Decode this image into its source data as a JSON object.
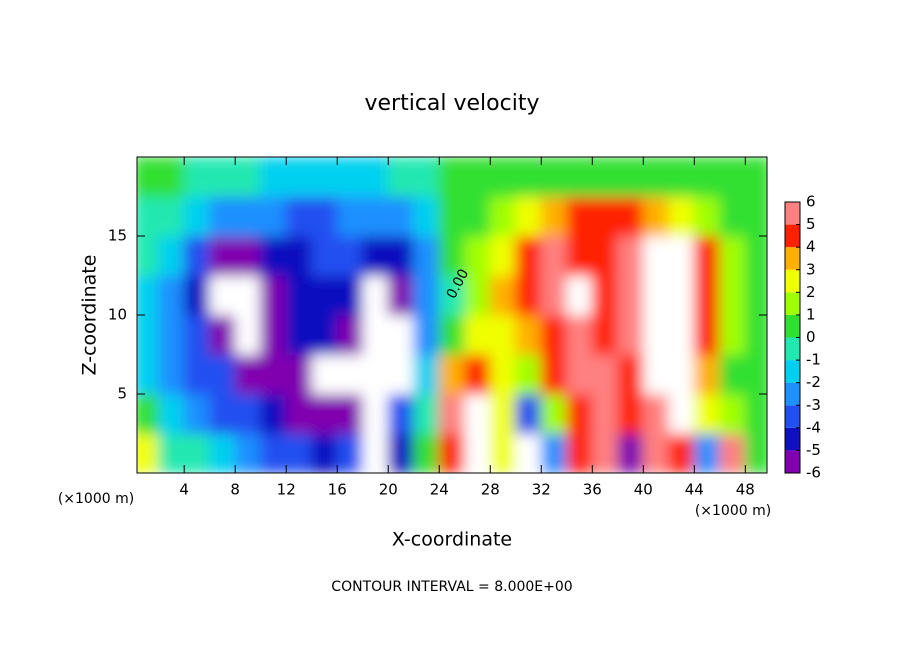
{
  "chart_data": {
    "type": "contourf",
    "title": "vertical velocity",
    "x_label": "X-coordinate",
    "y_label": "Z-coordinate",
    "x_unit_left": "(×1000 m)",
    "x_unit_right": "(×1000 m)",
    "footer": "CONTOUR INTERVAL = 8.000E+00",
    "contour_label": "0.00",
    "xlim": [
      0.3,
      49.7
    ],
    "ylim": [
      0,
      20
    ],
    "xticks": [
      4,
      8,
      12,
      16,
      20,
      24,
      28,
      32,
      36,
      40,
      44,
      48
    ],
    "yticks": [
      5,
      10,
      15
    ],
    "x": [
      1,
      3,
      5,
      7,
      9,
      11,
      13,
      15,
      17,
      19,
      21,
      23,
      25,
      27,
      29,
      31,
      33,
      35,
      37,
      39,
      41,
      43,
      45,
      47,
      49
    ],
    "z": [
      1.25,
      3.75,
      6.25,
      8.75,
      11.25,
      13.75,
      16.25,
      18.75
    ],
    "values": [
      [
        3,
        0,
        0,
        -1,
        -2,
        -3,
        -3,
        -4,
        -3,
        -8,
        -4,
        0.5,
        5,
        8,
        3,
        8,
        -2,
        5,
        6,
        -5,
        6,
        5,
        -2,
        6,
        1
      ],
      [
        0.5,
        -1,
        -2,
        -3,
        -3,
        -4,
        -5,
        -6,
        -5,
        -8,
        -3,
        0,
        6,
        8,
        3,
        -3,
        2,
        5,
        6,
        5,
        6,
        8,
        3,
        2,
        1
      ],
      [
        -1,
        -2,
        -3,
        -3.5,
        -5,
        -5,
        -6,
        -8,
        -8,
        -8,
        -8,
        -1,
        4,
        5,
        3,
        2,
        5,
        6,
        6,
        5,
        8,
        8,
        4,
        1,
        0.5
      ],
      [
        -1.5,
        -2,
        -3,
        -5,
        -8,
        -6,
        -4,
        -4.5,
        -5.5,
        -8,
        -8,
        -2,
        1,
        2.5,
        3,
        4,
        5,
        6,
        5,
        6,
        8,
        8,
        4.5,
        1.5,
        0.5
      ],
      [
        -1,
        -2,
        -4,
        -8,
        -8,
        -5,
        -4,
        -4,
        -4.5,
        -8,
        -6,
        -2.5,
        0,
        2,
        3.5,
        4.5,
        5.5,
        8,
        5,
        5.5,
        8,
        8,
        5,
        2,
        1
      ],
      [
        -0.5,
        -1.5,
        -3,
        -5,
        -5,
        -4,
        -4,
        -3.5,
        -3,
        -4,
        -4,
        -2,
        0.5,
        2,
        3,
        4.5,
        5.5,
        5,
        5,
        5.5,
        8,
        8,
        5,
        2,
        1
      ],
      [
        0,
        -0.5,
        -1.5,
        -2,
        -2.5,
        -2.5,
        -3,
        -3,
        -2.5,
        -2.5,
        -2,
        -1,
        0.5,
        1,
        1.5,
        3,
        4,
        4.5,
        4.5,
        4.5,
        4,
        3,
        2,
        1,
        0.5
      ],
      [
        0.5,
        0.5,
        0,
        -0.5,
        -0.5,
        -1,
        -1,
        -1.5,
        -1.5,
        -1,
        -0.5,
        0,
        0.5,
        0.5,
        0.5,
        1,
        1,
        1,
        1,
        1,
        1,
        1,
        0.5,
        0.5,
        0.3
      ]
    ],
    "colorbar": {
      "ticks": [
        -6,
        -5,
        -4,
        -3,
        -2,
        -1,
        0,
        1,
        2,
        3,
        4,
        5,
        6
      ],
      "colors": [
        "#8000b0",
        "#1010c0",
        "#2050f0",
        "#1e90ff",
        "#00d0f0",
        "#20e8b0",
        "#30e030",
        "#a0ff00",
        "#f0ff00",
        "#ffb000",
        "#ff2000",
        "#ff8080"
      ],
      "out_of_range_color": "#ffffff"
    }
  }
}
